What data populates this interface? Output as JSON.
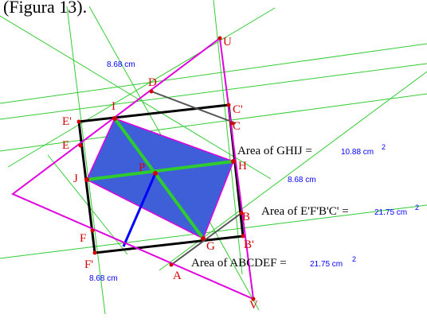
{
  "caption": "(Figura 13).",
  "colors": {
    "construction_line": "#33cc33",
    "triangle": "#e000e0",
    "square": "#000000",
    "rectangle_fill": "#3f5fd8",
    "diagonal": "#2ecc2e",
    "radius": "#0000ff",
    "point_label": "#d40000",
    "measure": "#0000ff"
  },
  "points": {
    "U": "U",
    "D": "D",
    "I": "I",
    "C_prime": "C'",
    "E_prime": "E'",
    "C": "C",
    "E": "E",
    "P": "P",
    "H": "H",
    "J": "J",
    "B": "B",
    "F": "F",
    "G": "G",
    "B_prime": "B'",
    "F_prime": "F'",
    "A": "A",
    "V": "V"
  },
  "measurements": {
    "side_top": "8.68 cm",
    "side_right": "8.68 cm",
    "side_bottom": "8.68 cm",
    "area_ghij": {
      "label": "Area of GHIJ =",
      "value": "10.88 cm",
      "exp": "2"
    },
    "area_efbc": {
      "label": "Area of E'F'B'C' =",
      "value": "21.75 cm",
      "exp": "2"
    },
    "area_abcdef": {
      "label": "Area of ABCDEF =",
      "value": "21.75 cm",
      "exp": "2"
    }
  }
}
